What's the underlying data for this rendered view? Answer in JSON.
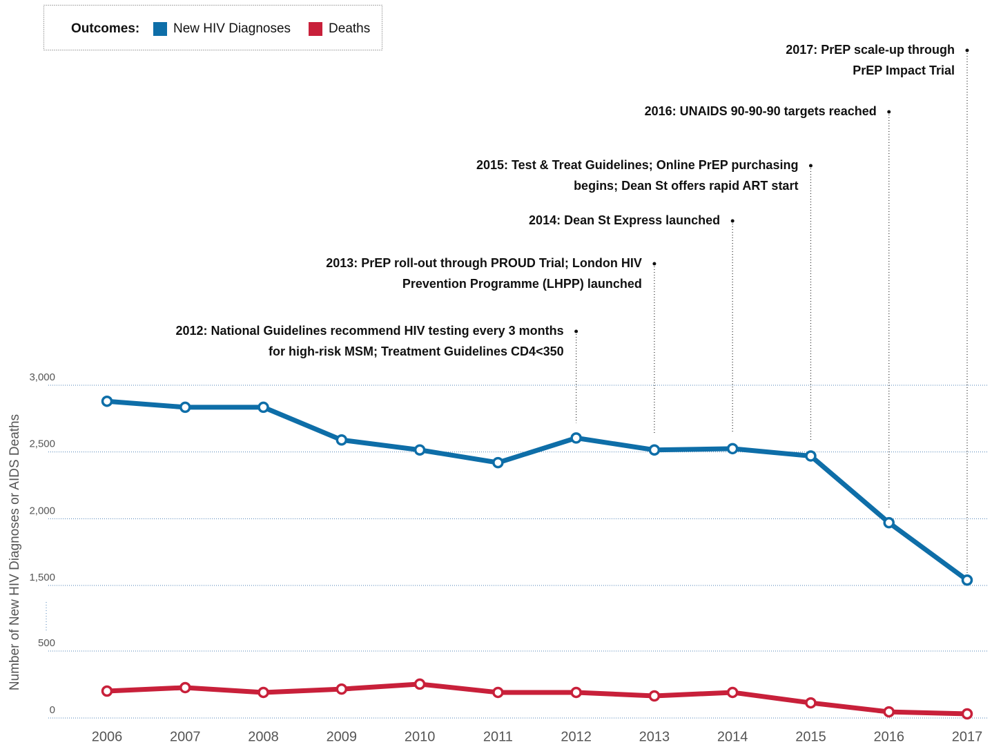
{
  "chart_data": {
    "type": "line",
    "legend_title": "Outcomes:",
    "legend_position": "top-left",
    "y_label": "Number of New HIV Diagnoses or AIDS Deaths",
    "categories": [
      "2006",
      "2007",
      "2008",
      "2009",
      "2010",
      "2011",
      "2012",
      "2013",
      "2014",
      "2015",
      "2016",
      "2017"
    ],
    "series": [
      {
        "name": "New HIV Diagnoses",
        "color": "#0e6ea8",
        "values": [
          2880,
          2835,
          2835,
          2590,
          2515,
          2420,
          2605,
          2515,
          2525,
          2470,
          1970,
          1540
        ]
      },
      {
        "name": "Deaths",
        "color": "#c8203a",
        "values": [
          201,
          227,
          191,
          216,
          253,
          191,
          191,
          165,
          191,
          113,
          46,
          31
        ]
      }
    ],
    "ylim": [
      0,
      3000
    ],
    "axis_break": [
      500,
      1500
    ],
    "yticks": [
      0,
      500,
      {
        "value": 1500,
        "label": "1,500"
      },
      {
        "value": 2000,
        "label": "2,000"
      },
      {
        "value": 2500,
        "label": "2,500"
      },
      {
        "value": 3000,
        "label": "3,000"
      }
    ],
    "grid": true,
    "annotations": [
      {
        "lines": [
          "2012: National Guidelines recommend HIV testing every 3 months",
          "for high-risk MSM; Treatment Guidelines CD4<350"
        ]
      },
      {
        "lines": [
          "2013: PrEP roll-out through PROUD Trial; London HIV",
          "Prevention Programme (LHPP) launched"
        ]
      },
      {
        "lines": [
          "2014: Dean St Express launched"
        ]
      },
      {
        "lines": [
          "2015: Test & Treat Guidelines; Online PrEP purchasing",
          "begins; Dean St offers rapid ART start"
        ]
      },
      {
        "lines": [
          "2016: UNAIDS 90-90-90 targets reached"
        ]
      },
      {
        "lines": [
          "2017: PrEP scale-up through",
          "PrEP Impact Trial"
        ]
      }
    ]
  }
}
